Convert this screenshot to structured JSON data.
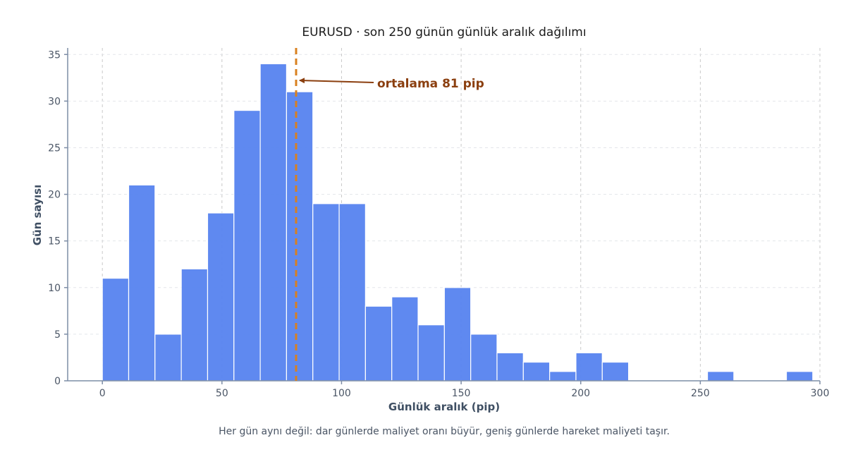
{
  "chart_data": {
    "type": "bar",
    "title": "EURUSD · son 250 günün günlük aralık dağılımı",
    "xlabel": "Günlük aralık (pip)",
    "ylabel": "Gün sayısı",
    "caption": "Her gün aynı değil: dar günlerde maliyet oranı büyür, geniş günlerde hareket maliyeti taşır.",
    "xlim": [
      -14.5,
      300
    ],
    "ylim": [
      0,
      35.7
    ],
    "xticks": [
      0,
      50,
      100,
      150,
      200,
      250,
      300
    ],
    "yticks": [
      0,
      5,
      10,
      15,
      20,
      25,
      30,
      35
    ],
    "grid": true,
    "bin_start": 0,
    "bin_width": 11,
    "counts": [
      11,
      21,
      5,
      12,
      18,
      29,
      34,
      31,
      19,
      19,
      8,
      9,
      6,
      10,
      5,
      3,
      2,
      1,
      3,
      2,
      0,
      0,
      0,
      1,
      0,
      0,
      1
    ],
    "mean_line": {
      "x": 81,
      "label": "ortalama 81 pip",
      "color": "#d9801f"
    },
    "bar_color": "#5a86f0"
  }
}
